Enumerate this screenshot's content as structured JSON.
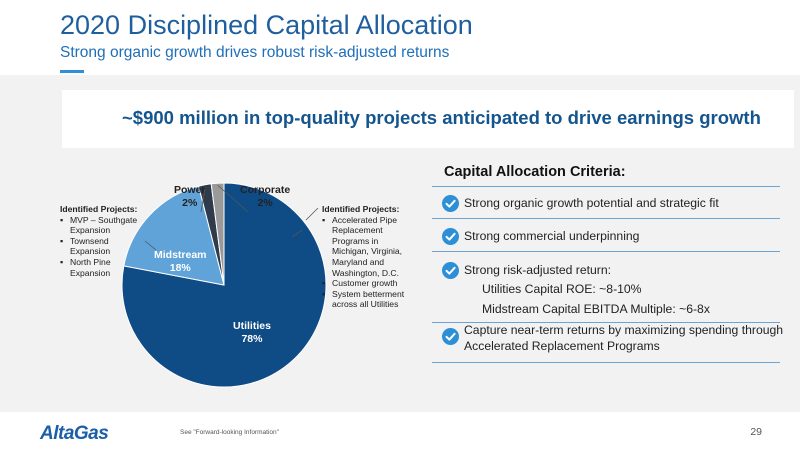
{
  "header": {
    "title": "2020 Disciplined Capital Allocation",
    "subtitle": "Strong organic growth drives robust risk-adjusted returns"
  },
  "banner": {
    "text": "~$900 million in top-quality projects anticipated to drive earnings growth"
  },
  "left_projects": {
    "heading": "Identified Projects:",
    "items": [
      "MVP – Southgate Expansion",
      "Townsend Expansion",
      "North Pine Expansion"
    ]
  },
  "right_projects": {
    "heading": "Identified Projects:",
    "items": [
      "Accelerated Pipe Replacement Programs in Michigan, Virginia, Maryland and Washington, D.C.",
      "Customer growth",
      "System betterment across all Utilities"
    ]
  },
  "chart_data": {
    "type": "pie",
    "slices": [
      {
        "label": "Utilities",
        "value": 78,
        "value_label": "78%",
        "color": "#0f4c86"
      },
      {
        "label": "Midstream",
        "value": 18,
        "value_label": "18%",
        "color": "#5fa3d9"
      },
      {
        "label": "Power",
        "value": 2,
        "value_label": "2%",
        "color": "#2f3a4a"
      },
      {
        "label": "Corporate",
        "value": 2,
        "value_label": "2%",
        "color": "#9a9a9a"
      }
    ]
  },
  "criteria": {
    "title": "Capital Allocation Criteria:",
    "items": [
      {
        "text": "Strong organic growth potential and strategic fit"
      },
      {
        "text": "Strong commercial underpinning"
      },
      {
        "text": "Strong risk-adjusted return:",
        "sub": [
          "Utilities Capital ROE: ~8-10%",
          "Midstream Capital EBITDA Multiple: ~6-8x"
        ]
      },
      {
        "text": "Capture near-term returns by maximizing spending through",
        "text2": "Accelerated Replacement Programs"
      }
    ]
  },
  "footer": {
    "logo": "AltaGas",
    "footnote": "See \"Forward-looking Information\"",
    "page": "29"
  },
  "colors": {
    "primary": "#1f5f9e",
    "accent": "#2d8fd6"
  }
}
